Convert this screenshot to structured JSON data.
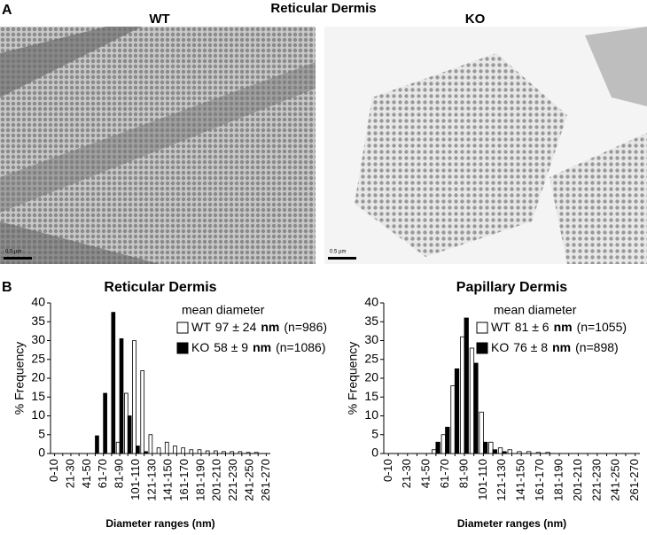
{
  "figure": {
    "panel_a": "A",
    "panel_a_title": "Reticular Dermis",
    "image_labels": [
      "WT",
      "KO"
    ],
    "scale_bars": [
      "0.5 µm",
      "0.5 µm"
    ],
    "panel_b": "B",
    "legend_title": "mean diameter"
  },
  "chart_data": [
    {
      "type": "bar",
      "title": "Reticular Dermis",
      "y_label": "% Frequency",
      "x_label": "Diameter ranges (nm)",
      "categories": [
        "0-10",
        null,
        "21-30",
        null,
        "41-50",
        null,
        "61-70",
        null,
        "81-90",
        null,
        "101-110",
        null,
        "121-130",
        null,
        "141-150",
        null,
        "161-170",
        null,
        "181-190",
        null,
        "201-210",
        null,
        "221-230",
        null,
        "241-250",
        null,
        "261-270"
      ],
      "series": [
        {
          "name": "WT",
          "color": "#ffffff",
          "stat": "97 ± 24",
          "unit": "nm",
          "n": "(n=986)",
          "values": [
            0,
            0,
            0,
            0,
            0,
            0,
            0,
            0,
            3,
            16,
            30,
            22,
            5,
            1.5,
            3,
            2,
            1.5,
            1,
            1,
            0.7,
            0.7,
            0.5,
            0.5,
            0.5,
            0.3,
            0.3,
            0
          ]
        },
        {
          "name": "KO",
          "color": "#000000",
          "stat": "58 ± 9",
          "unit": "nm",
          "n": "(n=1086)",
          "values": [
            0,
            0,
            0,
            0,
            0,
            4.7,
            16,
            37.5,
            30.5,
            10,
            2,
            0.5,
            0,
            0,
            0,
            0,
            0,
            0,
            0,
            0,
            0,
            0,
            0,
            0,
            0,
            0,
            0
          ]
        }
      ],
      "ylim": [
        0,
        40
      ],
      "yticks": [
        0,
        5,
        10,
        15,
        20,
        25,
        30,
        35,
        40
      ]
    },
    {
      "type": "bar",
      "title": "Papillary Dermis",
      "y_label": "% Frequency",
      "x_label": "Diameter ranges (nm)",
      "categories": [
        "0-10",
        null,
        "21-30",
        null,
        "41-50",
        null,
        "61-70",
        null,
        "81-90",
        null,
        "101-110",
        null,
        "121-130",
        null,
        "141-150",
        null,
        "161-170",
        null,
        "181-190",
        null,
        "201-210",
        null,
        "221-230",
        null,
        "241-250",
        null,
        "261-270"
      ],
      "series": [
        {
          "name": "WT",
          "color": "#ffffff",
          "stat": "81 ± 6",
          "unit": "nm",
          "n": "(n=1055)",
          "values": [
            0,
            0,
            0,
            0,
            0,
            1,
            5,
            18,
            31,
            28,
            11,
            3,
            1.5,
            1,
            0.5,
            0.5,
            0.3,
            0.3,
            0,
            0,
            0,
            0,
            0,
            0,
            0,
            0,
            0
          ]
        },
        {
          "name": "KO",
          "color": "#000000",
          "stat": "76 ± 8",
          "unit": "nm",
          "n": "(n=898)",
          "values": [
            0,
            0,
            0,
            0,
            0,
            3,
            7,
            22.5,
            36,
            24,
            3,
            1,
            0.5,
            0,
            0,
            0,
            0,
            0,
            0,
            0,
            0,
            0,
            0,
            0,
            0,
            0,
            0
          ]
        }
      ],
      "ylim": [
        0,
        40
      ],
      "yticks": [
        0,
        5,
        10,
        15,
        20,
        25,
        30,
        35,
        40
      ]
    }
  ]
}
